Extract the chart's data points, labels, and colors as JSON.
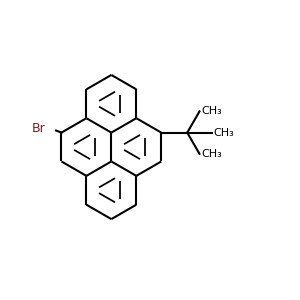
{
  "background_color": "#ffffff",
  "bond_color": "#000000",
  "br_color": "#7b2020",
  "lw": 1.5,
  "dlw": 1.3,
  "doff": 0.055,
  "figsize": [
    3.0,
    3.0
  ],
  "dpi": 100,
  "br_label": "Br",
  "ch3_label": "CH₃",
  "br_fontsize": 9,
  "ch3_fontsize": 8
}
